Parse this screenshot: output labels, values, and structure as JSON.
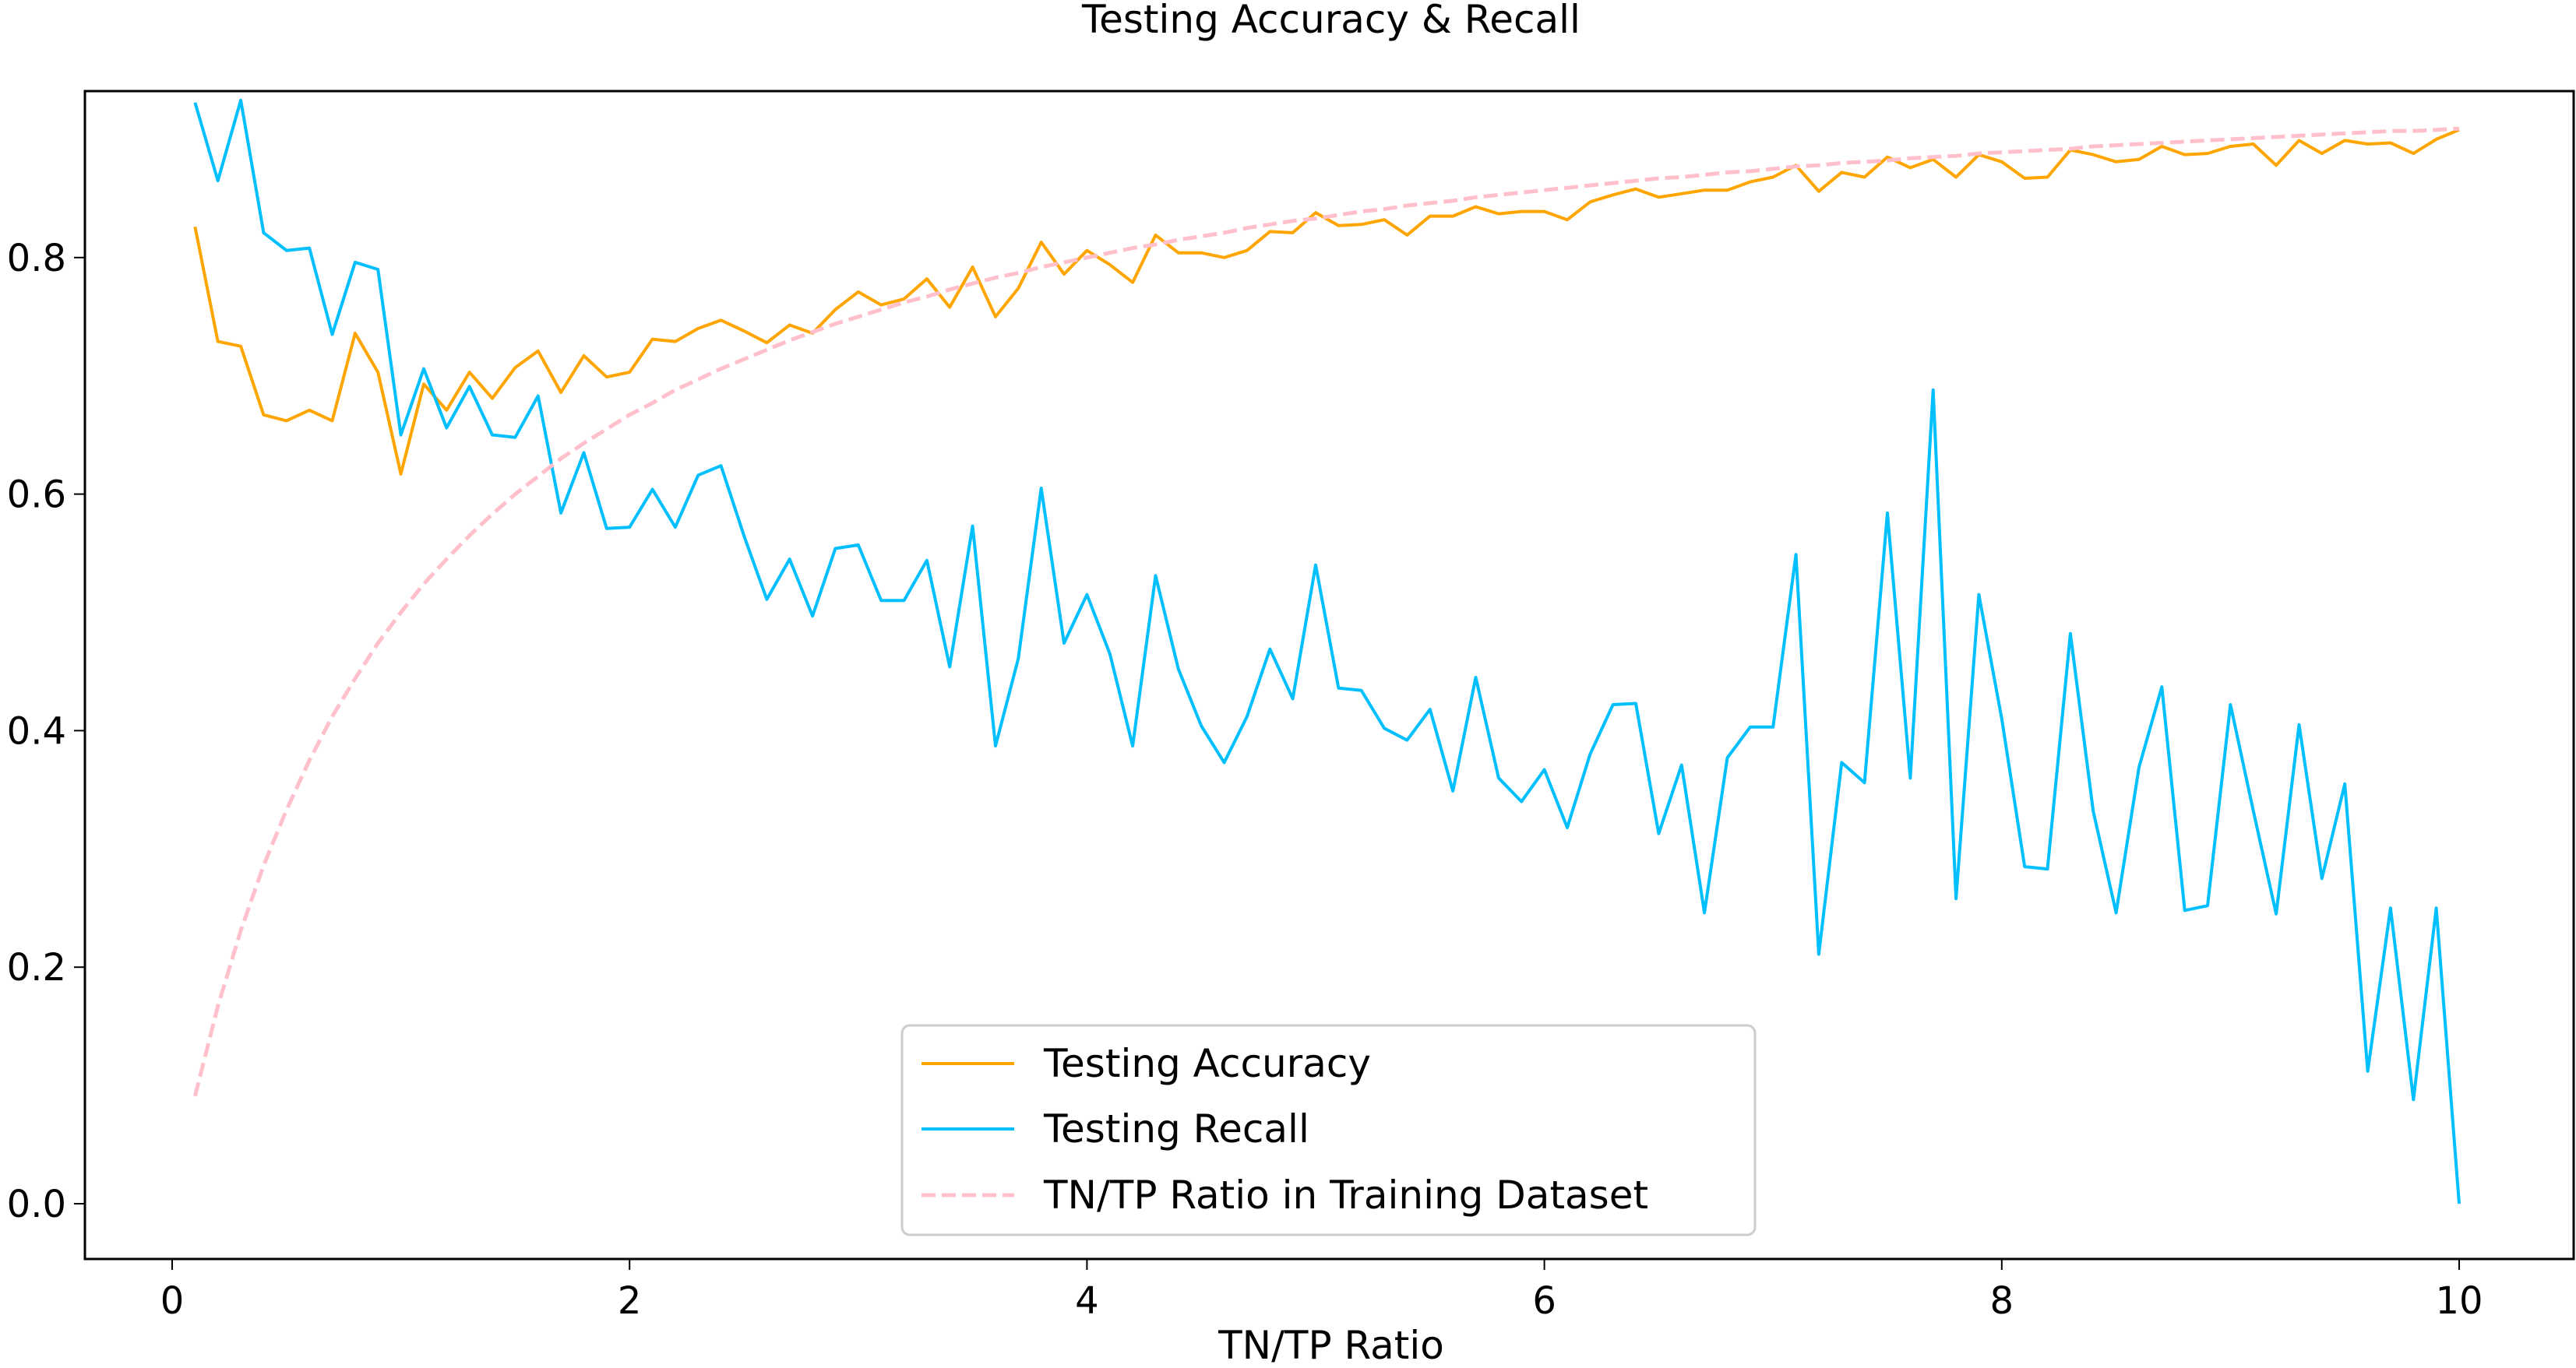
{
  "chart_data": {
    "type": "line",
    "title": "Testing Accuracy & Recall",
    "xlabel": "TN/TP Ratio",
    "ylabel": "",
    "xlim": [
      -0.4,
      10.5
    ],
    "ylim": [
      -0.045,
      0.965
    ],
    "xticks": [
      0,
      2,
      4,
      6,
      8,
      10
    ],
    "xtick_labels": [
      "0",
      "2",
      "4",
      "6",
      "8",
      "10"
    ],
    "yticks": [
      0.0,
      0.2,
      0.4,
      0.6,
      0.8
    ],
    "ytick_labels": [
      "0.0",
      "0.2",
      "0.4",
      "0.6",
      "0.8"
    ],
    "grid": false,
    "legend_position": "lower center",
    "x": [
      0.1,
      0.2,
      0.3,
      0.4,
      0.5,
      0.6,
      0.7,
      0.8,
      0.9,
      1.0,
      1.1,
      1.2,
      1.3,
      1.4,
      1.5,
      1.6,
      1.7,
      1.8,
      1.9,
      2.0,
      2.1,
      2.2,
      2.3,
      2.4,
      2.5,
      2.6,
      2.7,
      2.8,
      2.9,
      3.0,
      3.1,
      3.2,
      3.3,
      3.4,
      3.5,
      3.6,
      3.7,
      3.8,
      3.9,
      4.0,
      4.1,
      4.2,
      4.3,
      4.4,
      4.5,
      4.6,
      4.7,
      4.8,
      4.9,
      5.0,
      5.1,
      5.2,
      5.3,
      5.4,
      5.5,
      5.6,
      5.7,
      5.8,
      5.9,
      6.0,
      6.1,
      6.2,
      6.3,
      6.4,
      6.5,
      6.6,
      6.7,
      6.8,
      6.9,
      7.0,
      7.1,
      7.2,
      7.3,
      7.4,
      7.5,
      7.6,
      7.7,
      7.8,
      7.9,
      8.0,
      8.1,
      8.2,
      8.3,
      8.4,
      8.5,
      8.6,
      8.7,
      8.8,
      8.9,
      9.0,
      9.1,
      9.2,
      9.3,
      9.4,
      9.5,
      9.6,
      9.7,
      9.8,
      9.9,
      10.0
    ],
    "series": [
      {
        "name": "Testing Accuracy",
        "color": "#ffa500",
        "style": "solid",
        "values": [
          0.826,
          0.729,
          0.725,
          0.667,
          0.662,
          0.671,
          0.662,
          0.736,
          0.703,
          0.617,
          0.693,
          0.671,
          0.703,
          0.681,
          0.707,
          0.721,
          0.686,
          0.717,
          0.699,
          0.703,
          0.731,
          0.729,
          0.74,
          0.747,
          0.738,
          0.728,
          0.743,
          0.736,
          0.756,
          0.771,
          0.76,
          0.765,
          0.782,
          0.758,
          0.792,
          0.75,
          0.774,
          0.813,
          0.786,
          0.806,
          0.794,
          0.779,
          0.819,
          0.804,
          0.804,
          0.8,
          0.806,
          0.822,
          0.821,
          0.838,
          0.827,
          0.828,
          0.832,
          0.819,
          0.835,
          0.835,
          0.843,
          0.837,
          0.839,
          0.839,
          0.832,
          0.847,
          0.853,
          0.858,
          0.851,
          0.854,
          0.857,
          0.857,
          0.864,
          0.868,
          0.878,
          0.856,
          0.872,
          0.868,
          0.885,
          0.876,
          0.883,
          0.868,
          0.887,
          0.881,
          0.867,
          0.868,
          0.891,
          0.887,
          0.881,
          0.883,
          0.894,
          0.887,
          0.888,
          0.894,
          0.896,
          0.878,
          0.899,
          0.888,
          0.899,
          0.896,
          0.897,
          0.888,
          0.9,
          0.908
        ]
      },
      {
        "name": "Testing Recall",
        "color": "#00bfff",
        "style": "solid",
        "values": [
          0.931,
          0.865,
          0.933,
          0.821,
          0.806,
          0.808,
          0.735,
          0.796,
          0.79,
          0.65,
          0.706,
          0.656,
          0.691,
          0.65,
          0.648,
          0.683,
          0.584,
          0.635,
          0.571,
          0.572,
          0.604,
          0.572,
          0.616,
          0.624,
          0.565,
          0.511,
          0.545,
          0.497,
          0.554,
          0.557,
          0.51,
          0.51,
          0.544,
          0.454,
          0.573,
          0.387,
          0.461,
          0.605,
          0.474,
          0.515,
          0.465,
          0.387,
          0.531,
          0.452,
          0.404,
          0.373,
          0.412,
          0.469,
          0.427,
          0.54,
          0.436,
          0.434,
          0.402,
          0.392,
          0.418,
          0.349,
          0.445,
          0.36,
          0.34,
          0.367,
          0.318,
          0.38,
          0.422,
          0.423,
          0.313,
          0.371,
          0.246,
          0.377,
          0.403,
          0.403,
          0.549,
          0.211,
          0.373,
          0.356,
          0.584,
          0.36,
          0.688,
          0.258,
          0.515,
          0.41,
          0.285,
          0.283,
          0.482,
          0.332,
          0.246,
          0.369,
          0.437,
          0.248,
          0.252,
          0.422,
          0.332,
          0.245,
          0.405,
          0.275,
          0.355,
          0.112,
          0.25,
          0.088,
          0.25,
          0.0
        ]
      },
      {
        "name": "TN/TP Ratio in Training Dataset",
        "color": "#ffc0cb",
        "style": "dashed",
        "values": [
          0.091,
          0.167,
          0.231,
          0.286,
          0.333,
          0.375,
          0.412,
          0.444,
          0.474,
          0.5,
          0.524,
          0.545,
          0.565,
          0.583,
          0.6,
          0.615,
          0.63,
          0.643,
          0.655,
          0.667,
          0.677,
          0.688,
          0.697,
          0.706,
          0.714,
          0.722,
          0.73,
          0.737,
          0.744,
          0.75,
          0.756,
          0.762,
          0.767,
          0.773,
          0.778,
          0.783,
          0.787,
          0.792,
          0.796,
          0.8,
          0.804,
          0.808,
          0.811,
          0.815,
          0.818,
          0.821,
          0.825,
          0.828,
          0.831,
          0.833,
          0.836,
          0.839,
          0.841,
          0.844,
          0.846,
          0.848,
          0.851,
          0.853,
          0.855,
          0.857,
          0.859,
          0.861,
          0.863,
          0.865,
          0.867,
          0.868,
          0.87,
          0.872,
          0.873,
          0.875,
          0.877,
          0.878,
          0.88,
          0.881,
          0.882,
          0.884,
          0.885,
          0.886,
          0.888,
          0.889,
          0.89,
          0.891,
          0.892,
          0.894,
          0.895,
          0.896,
          0.897,
          0.898,
          0.899,
          0.9,
          0.901,
          0.902,
          0.903,
          0.904,
          0.905,
          0.906,
          0.907,
          0.907,
          0.908,
          0.909
        ]
      }
    ]
  }
}
